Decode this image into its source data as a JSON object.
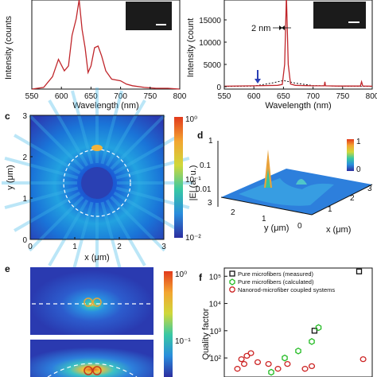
{
  "panels": {
    "a": {
      "ylabel": "Intensity (counts",
      "xlabel": "Wavelength (nm)",
      "x_ticks": [
        "550",
        "600",
        "650",
        "700",
        "750",
        "800"
      ]
    },
    "b": {
      "ylabel": "Intensity (count",
      "xlabel": "Wavelength (nm)",
      "x_ticks": [
        "550",
        "600",
        "650",
        "700",
        "750",
        "800"
      ],
      "y_ticks": [
        "0",
        "5000",
        "10000",
        "15000"
      ],
      "annotation": "2 nm"
    },
    "c": {
      "letter": "c",
      "xlabel": "x (μm)",
      "ylabel": "y (μm)",
      "x_ticks": [
        "0",
        "1",
        "2",
        "3"
      ],
      "y_ticks": [
        "0",
        "1",
        "2",
        "3"
      ],
      "colorbar_ticks": [
        "10⁰",
        "10⁻¹",
        "10⁻²"
      ]
    },
    "d": {
      "letter": "d",
      "zlabel": "|E| (a. u.)",
      "z_ticks": [
        "1",
        "0.1",
        "0.01"
      ],
      "y_axis_label": "y (μm)",
      "x_axis_label": "x (μm)",
      "y_ticks": [
        "3",
        "2",
        "1",
        "0"
      ],
      "x_ticks": [
        "1",
        "2",
        "3"
      ],
      "colorbar_ticks": [
        "1",
        "0"
      ]
    },
    "e": {
      "letter": "e",
      "colorbar_ticks": [
        "10⁰",
        "10⁻¹"
      ]
    },
    "f": {
      "letter": "f",
      "ylabel": "Quality factor",
      "legend": [
        {
          "label": "Pure microfibers (measured)",
          "color": "#111111",
          "marker": "square"
        },
        {
          "label": "Pure microfibers (calculated)",
          "color": "#22bb22",
          "marker": "hexagon"
        },
        {
          "label": "Nanorod-microfiber coupled systems",
          "color": "#cc2222",
          "marker": "circle"
        }
      ],
      "y_ticks": [
        "10⁵",
        "10⁴",
        "10³",
        "10²"
      ]
    }
  },
  "chart_data": [
    {
      "type": "line",
      "panel": "a",
      "xlabel": "Wavelength (nm)",
      "ylabel": "Intensity (counts",
      "xlim": [
        550,
        800
      ],
      "ylim": [
        0,
        1
      ],
      "series": [
        {
          "color": "#c0262b",
          "x": [
            550,
            570,
            585,
            595,
            605,
            612,
            618,
            625,
            630,
            635,
            640,
            645,
            650,
            656,
            662,
            668,
            675,
            685,
            700,
            710,
            720,
            740,
            760,
            780,
            800
          ],
          "y": [
            0.0,
            0.02,
            0.15,
            0.36,
            0.22,
            0.28,
            0.65,
            0.85,
            1.08,
            0.72,
            0.5,
            0.2,
            0.28,
            0.5,
            0.52,
            0.4,
            0.22,
            0.12,
            0.1,
            0.06,
            0.04,
            0.02,
            0.01,
            0.01,
            0.0
          ]
        }
      ]
    },
    {
      "type": "line",
      "panel": "b",
      "xlabel": "Wavelength (nm)",
      "ylabel": "Intensity (count",
      "xlim": [
        550,
        800
      ],
      "ylim": [
        0,
        20000
      ],
      "series": [
        {
          "color": "#c0262b",
          "x": [
            550,
            600,
            640,
            648,
            652,
            655,
            658,
            662,
            670,
            700,
            719,
            720,
            721,
            740,
            760,
            780,
            782,
            784,
            800
          ],
          "y": [
            100,
            200,
            300,
            500,
            5000,
            20500,
            5000,
            600,
            300,
            200,
            200,
            1100,
            200,
            150,
            150,
            150,
            1100,
            150,
            100
          ]
        },
        {
          "color": "#111111",
          "dashed": true,
          "x": [
            550,
            600,
            630,
            650,
            670,
            700,
            750,
            800
          ],
          "y": [
            50,
            150,
            800,
            1400,
            800,
            250,
            100,
            50
          ]
        }
      ]
    },
    {
      "type": "scatter",
      "panel": "f",
      "ylabel": "Quality factor",
      "log_y": true,
      "ylim": [
        20,
        200000
      ],
      "series": [
        {
          "name": "Pure microfibers (measured)",
          "x": [
            0.62,
            0.95
          ],
          "y": [
            1000,
            150000
          ]
        },
        {
          "name": "Pure microfibers (calculated)",
          "x": [
            0.3,
            0.4,
            0.5,
            0.6,
            0.65
          ],
          "y": [
            30,
            100,
            180,
            400,
            1300
          ]
        },
        {
          "name": "Nanorod-microfiber coupled systems",
          "x": [
            0.05,
            0.08,
            0.12,
            0.15,
            0.1,
            0.2,
            0.28,
            0.35,
            0.42,
            0.55,
            0.6,
            0.98
          ],
          "y": [
            40,
            90,
            120,
            150,
            60,
            70,
            60,
            40,
            60,
            40,
            50,
            90
          ]
        }
      ]
    }
  ]
}
